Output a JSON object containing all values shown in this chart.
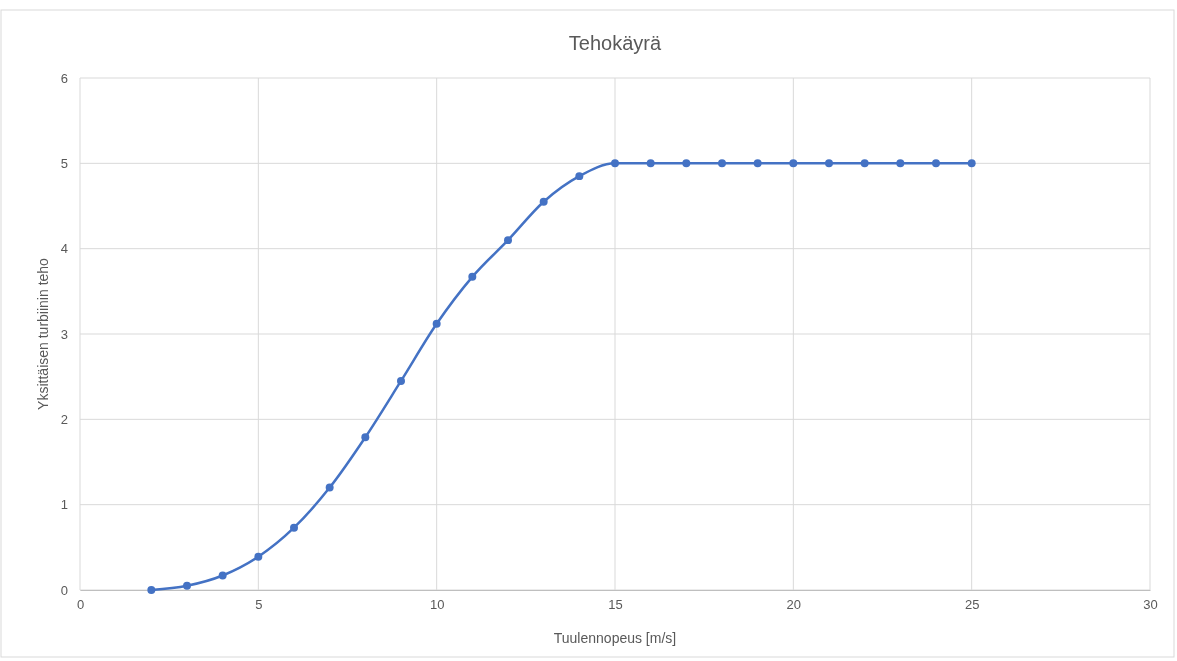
{
  "chart_data": {
    "type": "line",
    "title": "Tehokäyrä",
    "xlabel": "Tuulennopeus [m/s]",
    "ylabel": "Yksittäisen turbiinin teho",
    "x": [
      2,
      3,
      4,
      5,
      6,
      7,
      8,
      9,
      10,
      11,
      12,
      13,
      14,
      15,
      16,
      17,
      18,
      19,
      20,
      21,
      22,
      23,
      24,
      25
    ],
    "series": [
      {
        "color": "#4472c4",
        "values": [
          0,
          0.05,
          0.17,
          0.39,
          0.73,
          1.2,
          1.79,
          2.45,
          3.12,
          3.67,
          4.1,
          4.55,
          4.85,
          5,
          5,
          5,
          5,
          5,
          5,
          5,
          5,
          5,
          5,
          5
        ]
      }
    ],
    "xlim": [
      0,
      30
    ],
    "xticks": [
      0,
      5,
      10,
      15,
      20,
      25,
      30
    ],
    "ylim": [
      0,
      6
    ],
    "yticks": [
      0,
      1,
      2,
      3,
      4,
      5,
      6
    ],
    "grid": true,
    "marker": "circle",
    "line_style": "solid"
  }
}
